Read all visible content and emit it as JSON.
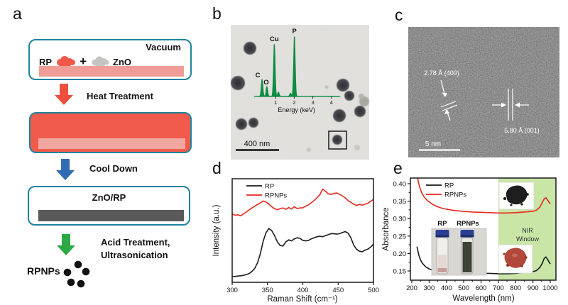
{
  "panel_a": {
    "label": "a",
    "vacuum": "Vacuum",
    "rp": "RP",
    "plus": "+",
    "zno": "ZnO",
    "step1": "Heat Treatment",
    "step2": "Cool Down",
    "intermediate": "ZnO/RP",
    "step3_line1": "Acid Treatment,",
    "step3_line2": "Ultrasonication",
    "product": "RPNPs"
  },
  "panel_b": {
    "label": "b",
    "scale_bar": "400 nm"
  },
  "panel_c": {
    "label": "c",
    "annotation_left": "2.78 Å (400)",
    "annotation_right": "5.80 Å (001)",
    "scale_bar": "5 nm"
  },
  "panel_d": {
    "label": "d"
  },
  "panel_e": {
    "label": "e",
    "nir": [
      "NIR",
      "Window"
    ],
    "vial_labels": [
      "RP",
      "RPNPs"
    ]
  },
  "colors": {
    "teal_border": "#1d83a0",
    "schematic_red": "#f15b4c",
    "substrate_pink": "#ef9d96",
    "inner_pink": "#f0a7a0",
    "zno_rp_gray": "#595959",
    "heat_arrow_red": "#ee4f3d",
    "cool_arrow_blue": "#2f6cb3",
    "acid_arrow_green": "#2ca845",
    "rp_blob_red": "#f0584a",
    "zno_blob_gray": "#c4c4c2",
    "eds_green": "#0e8c44",
    "series_black": "#1a1a1a",
    "series_red": "#e8281e",
    "nir_green": "#c9e6a6",
    "tem_background": "#d9d8d4"
  },
  "chart_data": [
    {
      "id": "eds",
      "type": "line",
      "panel": "b",
      "xlabel": "Energy (keV)",
      "xlim": [
        0,
        4.4
      ],
      "xticks": [
        1,
        2,
        3,
        4
      ],
      "color": "#0e8c44",
      "peaks": [
        {
          "label": "C",
          "keV": 0.27,
          "height": 0.28
        },
        {
          "label": "O",
          "keV": 0.53,
          "height": 0.16
        },
        {
          "label": "Cu",
          "keV": 0.93,
          "height": 0.87
        },
        {
          "label": "",
          "keV": 1.15,
          "height": 0.07
        },
        {
          "label": "",
          "keV": 1.8,
          "height": 0.05
        },
        {
          "label": "P",
          "keV": 2.01,
          "height": 1.0
        }
      ]
    },
    {
      "id": "raman",
      "type": "line",
      "panel": "d",
      "xlabel": "Raman Shift (cm⁻¹)",
      "ylabel": "Intensity (a.u.)",
      "xlim": [
        300,
        500
      ],
      "xticks": [
        300,
        350,
        400,
        450,
        500
      ],
      "legend_position": "top-left",
      "x_start": 300,
      "x_step": 4,
      "series": [
        {
          "name": "RP",
          "color": "#1a1a1a",
          "values": [
            0.055,
            0.057,
            0.06,
            0.063,
            0.067,
            0.075,
            0.085,
            0.105,
            0.135,
            0.19,
            0.28,
            0.4,
            0.48,
            0.52,
            0.5,
            0.45,
            0.39,
            0.355,
            0.35,
            0.39,
            0.41,
            0.4,
            0.42,
            0.43,
            0.425,
            0.405,
            0.4,
            0.405,
            0.42,
            0.43,
            0.44,
            0.445,
            0.44,
            0.45,
            0.46,
            0.47,
            0.47,
            0.465,
            0.47,
            0.48,
            0.49,
            0.475,
            0.43,
            0.36,
            0.32,
            0.3,
            0.295,
            0.31,
            0.32,
            0.34,
            0.37
          ]
        },
        {
          "name": "RPNPs",
          "color": "#e8281e",
          "values": [
            0.66,
            0.648,
            0.652,
            0.642,
            0.66,
            0.678,
            0.7,
            0.718,
            0.735,
            0.752,
            0.768,
            0.785,
            0.775,
            0.755,
            0.73,
            0.71,
            0.7,
            0.712,
            0.718,
            0.705,
            0.722,
            0.708,
            0.73,
            0.712,
            0.718,
            0.72,
            0.735,
            0.748,
            0.768,
            0.79,
            0.815,
            0.845,
            0.9,
            0.88,
            0.855,
            0.848,
            0.858,
            0.862,
            0.85,
            0.835,
            0.815,
            0.79,
            0.772,
            0.755,
            0.742,
            0.752,
            0.745,
            0.755,
            0.762,
            0.782,
            0.8
          ]
        }
      ]
    },
    {
      "id": "absorbance",
      "type": "line",
      "panel": "e",
      "xlabel": "Wavelength (nm)",
      "ylabel": "Absorbance",
      "xlim": [
        200,
        1020
      ],
      "ylim": [
        0.13,
        0.42
      ],
      "xticks": [
        200,
        300,
        400,
        500,
        600,
        700,
        800,
        900,
        1000
      ],
      "yticks": [
        0.15,
        0.2,
        0.25,
        0.3,
        0.35,
        0.4
      ],
      "legend_position": "top-left",
      "nir_window": {
        "from_nm": 700,
        "label": "NIR Window",
        "color": "#c9e6a6"
      },
      "x": [
        230,
        240,
        250,
        260,
        270,
        280,
        290,
        300,
        320,
        340,
        360,
        380,
        400,
        450,
        500,
        550,
        600,
        650,
        700,
        750,
        800,
        850,
        900,
        920,
        940,
        955,
        965,
        975,
        985,
        1000
      ],
      "series": [
        {
          "name": "RP",
          "color": "#1a1a1a",
          "values": [
            0.22,
            0.196,
            0.182,
            0.173,
            0.167,
            0.162,
            0.159,
            0.156,
            0.152,
            0.149,
            0.148,
            0.147,
            0.146,
            0.145,
            0.144,
            0.144,
            0.143,
            0.143,
            0.142,
            0.142,
            0.143,
            0.146,
            0.148,
            0.151,
            0.16,
            0.173,
            0.186,
            0.19,
            0.183,
            0.17
          ]
        },
        {
          "name": "RPNPs",
          "color": "#e8281e",
          "values": [
            0.425,
            0.4,
            0.383,
            0.371,
            0.363,
            0.357,
            0.352,
            0.348,
            0.341,
            0.336,
            0.332,
            0.329,
            0.327,
            0.323,
            0.321,
            0.319,
            0.318,
            0.317,
            0.316,
            0.316,
            0.317,
            0.319,
            0.321,
            0.324,
            0.333,
            0.347,
            0.357,
            0.36,
            0.353,
            0.342
          ]
        }
      ]
    }
  ]
}
